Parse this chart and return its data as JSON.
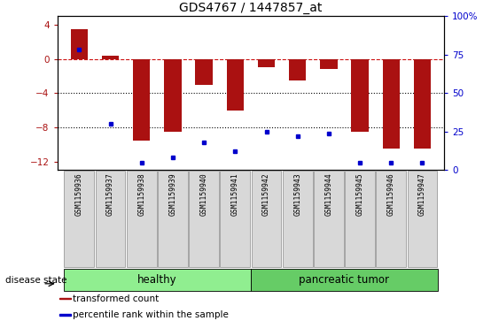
{
  "title": "GDS4767 / 1447857_at",
  "samples": [
    "GSM1159936",
    "GSM1159937",
    "GSM1159938",
    "GSM1159939",
    "GSM1159940",
    "GSM1159941",
    "GSM1159942",
    "GSM1159943",
    "GSM1159944",
    "GSM1159945",
    "GSM1159946",
    "GSM1159947"
  ],
  "red_bars": [
    3.5,
    0.4,
    -9.5,
    -8.5,
    -3.0,
    -6.0,
    -1.0,
    -2.5,
    -1.2,
    -8.5,
    -10.5,
    -10.5
  ],
  "blue_dots": [
    78,
    30,
    5,
    8,
    18,
    12,
    25,
    22,
    24,
    5,
    5,
    5
  ],
  "ylim_left": [
    -13,
    5
  ],
  "ylim_right": [
    0,
    100
  ],
  "yticks_left": [
    4,
    0,
    -4,
    -8,
    -12
  ],
  "yticks_right": [
    100,
    75,
    50,
    25,
    0
  ],
  "disease_groups": [
    {
      "label": "healthy",
      "start": 0,
      "end": 5
    },
    {
      "label": "pancreatic tumor",
      "start": 6,
      "end": 11
    }
  ],
  "bar_color": "#aa1111",
  "dot_color": "#0000cc",
  "dashed_line_color": "#cc1111",
  "dotted_line_color": "#000000",
  "healthy_color": "#90ee90",
  "tumor_color": "#66cc66",
  "bar_width": 0.55,
  "legend_items": [
    {
      "label": "transformed count",
      "color": "#aa1111"
    },
    {
      "label": "percentile rank within the sample",
      "color": "#0000cc"
    }
  ]
}
